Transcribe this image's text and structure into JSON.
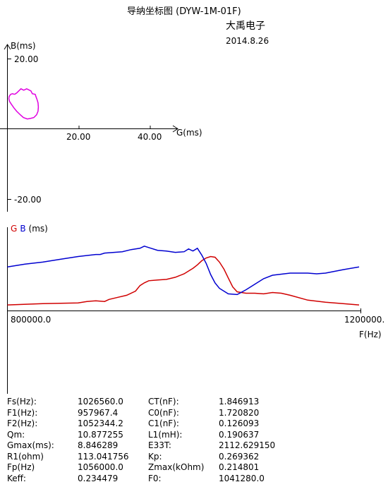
{
  "header": {
    "title": "导纳坐标图 (DYW-1M-01F)",
    "company": "大禹电子",
    "date": "2014.8.26"
  },
  "chart_data": [
    {
      "type": "line",
      "ylabel": "B(ms)",
      "xlabel": "G(ms)",
      "x_ticks": [
        "20.00",
        "40.00"
      ],
      "y_ticks": [
        "20.00",
        "-20.00"
      ],
      "xlim": [
        0,
        48
      ],
      "ylim": [
        -22,
        22
      ],
      "color": "#e000e0",
      "series": [
        {
          "x": [
            2.0,
            2.6,
            3.8,
            4.6,
            5.4,
            6.6,
            7.0,
            7.8,
            8.0,
            8.3,
            8.6,
            8.7,
            8.6,
            8.2,
            7.4,
            6.6,
            5.6,
            4.5,
            3.6,
            2.6,
            1.8,
            1.1,
            0.6,
            0.4,
            0.5,
            0.9,
            1.4,
            2.0
          ],
          "y": [
            9.8,
            10.2,
            11.4,
            11.0,
            11.4,
            10.8,
            10.0,
            9.8,
            9.2,
            8.4,
            7.4,
            6.2,
            5.0,
            4.0,
            3.2,
            3.0,
            2.8,
            3.2,
            4.0,
            5.0,
            6.0,
            7.0,
            7.8,
            8.6,
            9.2,
            9.8,
            10.0,
            9.8
          ]
        }
      ]
    },
    {
      "type": "line",
      "title_parts": [
        "G",
        "B",
        "(ms)"
      ],
      "xlabel": "F(Hz)",
      "x_ticks": [
        "800000.0",
        "1200000."
      ],
      "xlim": [
        800000,
        1200000
      ],
      "ylim": [
        0,
        100
      ],
      "series": [
        {
          "name": "G",
          "color": "#d00000",
          "x": [
            800000,
            840000,
            880000,
            890000,
            900000,
            910000,
            915000,
            925000,
            935000,
            945000,
            950000,
            955000,
            960000,
            970000,
            980000,
            990000,
            1000000,
            1010000,
            1015000,
            1020000,
            1025000,
            1030000,
            1035000,
            1040000,
            1045000,
            1050000,
            1055000,
            1060000,
            1070000,
            1080000,
            1090000,
            1100000,
            1110000,
            1120000,
            1140000,
            1160000,
            1180000,
            1198000
          ],
          "y": [
            6,
            8,
            9,
            11,
            12,
            11,
            14,
            17,
            20,
            26,
            34,
            38,
            41,
            42,
            43,
            46,
            51,
            59,
            64,
            70,
            74,
            76,
            75,
            68,
            58,
            45,
            32,
            25,
            23,
            23,
            22,
            24,
            23,
            20,
            13,
            10,
            8,
            6
          ]
        },
        {
          "name": "B",
          "color": "#0000d0",
          "x": [
            800000,
            820000,
            840000,
            860000,
            880000,
            900000,
            905000,
            910000,
            930000,
            940000,
            950000,
            955000,
            960000,
            970000,
            980000,
            990000,
            1000000,
            1005000,
            1010000,
            1015000,
            1020000,
            1025000,
            1030000,
            1035000,
            1040000,
            1050000,
            1060000,
            1070000,
            1080000,
            1090000,
            1100000,
            1120000,
            1140000,
            1150000,
            1160000,
            1180000,
            1198000
          ],
          "y": [
            61,
            65,
            68,
            72,
            76,
            79,
            79,
            81,
            83,
            86,
            88,
            91,
            89,
            85,
            84,
            82,
            83,
            87,
            84,
            88,
            78,
            66,
            50,
            38,
            30,
            22,
            21,
            28,
            36,
            44,
            49,
            52,
            52,
            51,
            52,
            57,
            61
          ]
        }
      ]
    }
  ],
  "params": [
    [
      "Fs(Hz):",
      "1026560.0",
      "CT(nF):",
      "1.846913"
    ],
    [
      "F1(Hz):",
      "957967.4",
      "C0(nF):",
      "1.720820"
    ],
    [
      "F2(Hz):",
      "1052344.2",
      "C1(nF):",
      "0.126093"
    ],
    [
      "Qm:",
      "10.877255",
      "L1(mH):",
      "0.190637"
    ],
    [
      "Gmax(ms):",
      "8.846289",
      "E33T:",
      "2112.629150"
    ],
    [
      "R1(ohm)",
      "113.041756",
      "Kp:",
      "0.269362"
    ],
    [
      "Fp(Hz)",
      "1056000.0",
      "Zmax(kOhm)",
      "0.214801"
    ],
    [
      "Keff:",
      "0.234479",
      "F0:",
      "1041280.0"
    ]
  ]
}
